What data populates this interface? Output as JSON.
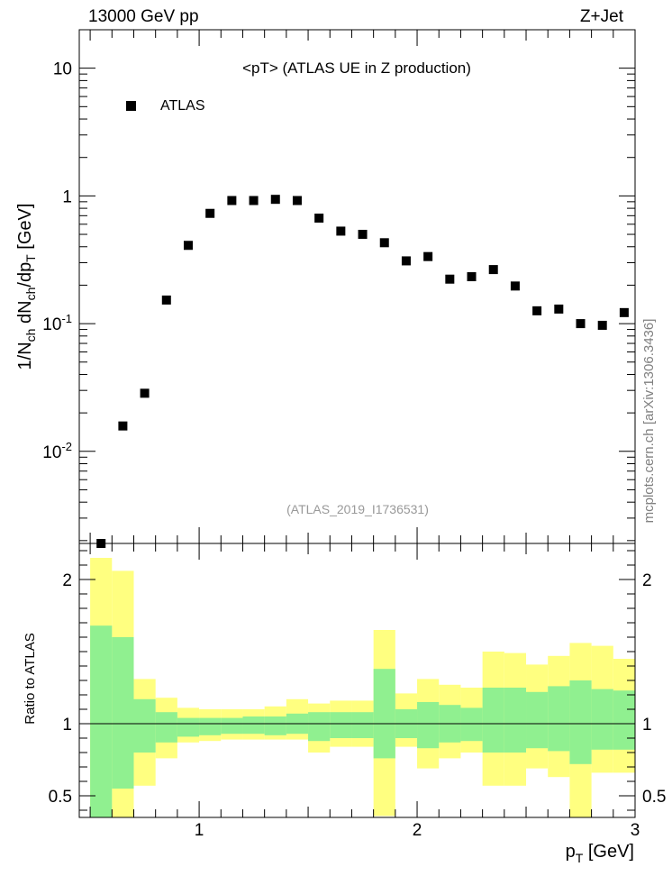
{
  "header": {
    "left_label": "13000 GeV pp",
    "right_label": "Z+Jet"
  },
  "side_label": "mcplots.cern.ch [arXiv:1306.3436]",
  "chart_data": [
    {
      "type": "scatter",
      "title": "<pT> (ATLAS UE in Z production)",
      "analysis_tag": "(ATLAS_2019_I1736531)",
      "xlabel_main": "p",
      "xlabel_sub": "T",
      "xlabel_unit": " [GeV]",
      "ylabel": {
        "a": "1/N",
        "b": "ch",
        "c": " dN",
        "d": "ch",
        "e": "/dp",
        "f": "T",
        "g": " [GeV]"
      },
      "yscale": "log",
      "ylim": [
        0.0019,
        20
      ],
      "xlim": [
        0.45,
        3.0
      ],
      "yticks_major": [
        {
          "value": 0.01,
          "base": "10",
          "exp": "-2"
        },
        {
          "value": 0.1,
          "base": "10",
          "exp": "-1"
        },
        {
          "value": 1,
          "base": "1",
          "exp": ""
        },
        {
          "value": 10,
          "base": "10",
          "exp": ""
        }
      ],
      "legend": {
        "position": "top-left",
        "entries": [
          {
            "label": "ATLAS",
            "marker": "square",
            "color": "#000000"
          }
        ]
      },
      "series": [
        {
          "name": "ATLAS",
          "color": "#000000",
          "x": [
            0.55,
            0.65,
            0.75,
            0.85,
            0.95,
            1.05,
            1.15,
            1.25,
            1.35,
            1.45,
            1.55,
            1.65,
            1.75,
            1.85,
            1.95,
            2.05,
            2.15,
            2.25,
            2.35,
            2.45,
            2.55,
            2.65,
            2.75,
            2.85,
            2.95
          ],
          "y": [
            0.0019,
            0.0158,
            0.0285,
            0.153,
            0.41,
            0.73,
            0.92,
            0.92,
            0.94,
            0.92,
            0.67,
            0.53,
            0.5,
            0.43,
            0.31,
            0.335,
            0.223,
            0.233,
            0.265,
            0.197,
            0.126,
            0.13,
            0.1,
            0.097,
            0.122
          ]
        }
      ]
    },
    {
      "type": "area",
      "ylabel": "Ratio to ATLAS",
      "xlim": [
        0.45,
        3.0
      ],
      "ylim": [
        0.35,
        2.25
      ],
      "reference_line": 1,
      "xticks": [
        {
          "value": 1,
          "label": "1"
        },
        {
          "value": 2,
          "label": "2"
        },
        {
          "value": 3,
          "label": "3"
        }
      ],
      "yticks": [
        {
          "value": 0.5,
          "label": "0.5"
        },
        {
          "value": 1,
          "label": "1"
        },
        {
          "value": 2,
          "label": "2"
        }
      ],
      "bands": {
        "x_edges": [
          0.5,
          0.6,
          0.7,
          0.8,
          0.9,
          1.0,
          1.1,
          1.2,
          1.3,
          1.4,
          1.5,
          1.6,
          1.7,
          1.8,
          1.9,
          2.0,
          2.1,
          2.2,
          2.3,
          2.4,
          2.5,
          2.6,
          2.7,
          2.8,
          2.9,
          3.0
        ],
        "yellow": {
          "color": "#ffff80",
          "lo": [
            0.35,
            0.35,
            0.57,
            0.76,
            0.87,
            0.88,
            0.89,
            0.89,
            0.89,
            0.89,
            0.8,
            0.84,
            0.84,
            0.36,
            0.84,
            0.69,
            0.76,
            0.8,
            0.57,
            0.57,
            0.69,
            0.63,
            0.35,
            0.66,
            0.66
          ],
          "hi": [
            2.15,
            2.06,
            1.31,
            1.18,
            1.11,
            1.1,
            1.1,
            1.1,
            1.12,
            1.17,
            1.14,
            1.16,
            1.16,
            1.65,
            1.21,
            1.31,
            1.27,
            1.25,
            1.5,
            1.49,
            1.41,
            1.47,
            1.56,
            1.54,
            1.45
          ]
        },
        "green": {
          "color": "#90f090",
          "lo": [
            0.35,
            0.55,
            0.8,
            0.87,
            0.91,
            0.92,
            0.93,
            0.93,
            0.92,
            0.93,
            0.88,
            0.9,
            0.9,
            0.76,
            0.9,
            0.83,
            0.87,
            0.88,
            0.8,
            0.8,
            0.83,
            0.81,
            0.72,
            0.82,
            0.82
          ],
          "hi": [
            1.68,
            1.6,
            1.17,
            1.08,
            1.04,
            1.04,
            1.04,
            1.05,
            1.05,
            1.07,
            1.08,
            1.08,
            1.08,
            1.38,
            1.1,
            1.15,
            1.13,
            1.11,
            1.25,
            1.25,
            1.22,
            1.26,
            1.3,
            1.24,
            1.23
          ]
        }
      }
    }
  ]
}
